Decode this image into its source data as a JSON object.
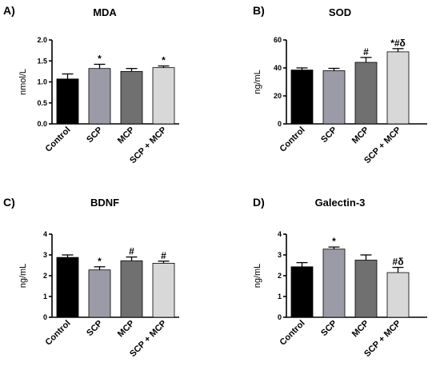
{
  "chart_data": [
    {
      "type": "bar",
      "panel": "A)",
      "title": "MDA",
      "ylabel": "nmol/L",
      "xlabel": "",
      "ylim": [
        0,
        2.0
      ],
      "yticks": [
        "0.0",
        "0.5",
        "1.0",
        "1.5",
        "2.0"
      ],
      "categories": [
        "Control",
        "SCP",
        "MCP",
        "SCP + MCP"
      ],
      "values": [
        1.07,
        1.32,
        1.25,
        1.34
      ],
      "errors": [
        0.12,
        0.1,
        0.07,
        0.04
      ],
      "annotations": [
        "",
        "*",
        "",
        "*"
      ],
      "colors": [
        "#000000",
        "#9b9ba8",
        "#707070",
        "#d8d8d8"
      ]
    },
    {
      "type": "bar",
      "panel": "B)",
      "title": "SOD",
      "ylabel": "ng/mL",
      "xlabel": "",
      "ylim": [
        0,
        60
      ],
      "yticks": [
        "0",
        "20",
        "40",
        "60"
      ],
      "categories": [
        "Control",
        "SCP",
        "MCP",
        "SCP + MCP"
      ],
      "values": [
        38.5,
        38,
        44,
        51.5
      ],
      "errors": [
        1.5,
        1.7,
        3.5,
        2.3
      ],
      "annotations": [
        "",
        "",
        "#",
        "*#δ"
      ],
      "colors": [
        "#000000",
        "#9b9ba8",
        "#707070",
        "#d8d8d8"
      ]
    },
    {
      "type": "bar",
      "panel": "C)",
      "title": "BDNF",
      "ylabel": "ng/mL",
      "xlabel": "",
      "ylim": [
        0,
        4
      ],
      "yticks": [
        "0",
        "1",
        "2",
        "3",
        "4"
      ],
      "categories": [
        "Control",
        "SCP",
        "MCP",
        "SCP + MCP"
      ],
      "values": [
        2.88,
        2.28,
        2.72,
        2.6
      ],
      "errors": [
        0.12,
        0.15,
        0.18,
        0.1
      ],
      "annotations": [
        "",
        "*",
        "#",
        "#"
      ],
      "colors": [
        "#000000",
        "#9b9ba8",
        "#707070",
        "#d8d8d8"
      ]
    },
    {
      "type": "bar",
      "panel": "D)",
      "title": "Galectin-3",
      "ylabel": "ng/mL",
      "xlabel": "",
      "ylim": [
        0,
        4
      ],
      "yticks": [
        "0",
        "1",
        "2",
        "3",
        "4"
      ],
      "categories": [
        "Control",
        "SCP",
        "MCP",
        "SCP + MCP"
      ],
      "values": [
        2.43,
        3.28,
        2.75,
        2.15
      ],
      "errors": [
        0.2,
        0.1,
        0.25,
        0.25
      ],
      "annotations": [
        "",
        "*",
        "",
        "#δ"
      ],
      "colors": [
        "#000000",
        "#9b9ba8",
        "#707070",
        "#d8d8d8"
      ]
    }
  ]
}
